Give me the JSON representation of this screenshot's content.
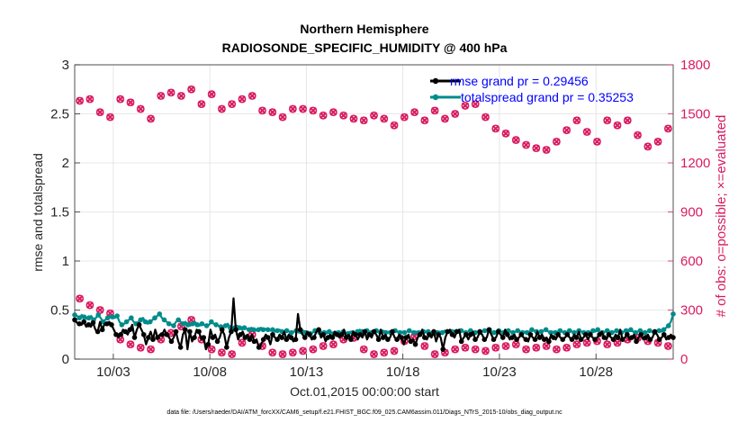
{
  "chart_data": {
    "type": "line",
    "title": "Northern Hemisphere",
    "subtitle": "RADIOSONDE_SPECIFIC_HUMIDITY @ 400 hPa",
    "xlabel": "Oct.01,2015 00:00:00 start",
    "ylabel": "rmse and totalspread",
    "y2label": "# of obs: o=possible; ×=evaluated",
    "footnote": "data file: /Users/raeder/DAI/ATM_forcXX/CAM6_setup/f.e21.FHIST_BGC.f09_025.CAM6assim.011/Diags_NTrS_2015-10/obs_diag_output.nc",
    "x_range": [
      1.0,
      32.0
    ],
    "ylim": [
      0,
      3
    ],
    "y2lim": [
      0,
      1800
    ],
    "x_ticks": [
      3,
      8,
      13,
      18,
      23,
      28
    ],
    "x_tick_labels": [
      "10/03",
      "10/08",
      "10/13",
      "10/18",
      "10/23",
      "10/28"
    ],
    "y_ticks": [
      "0",
      "0.5",
      "1",
      "1.5",
      "2",
      "2.5",
      "3"
    ],
    "y2_ticks": [
      "0",
      "300",
      "600",
      "900",
      "1200",
      "1500",
      "1800"
    ],
    "grid": true,
    "legend_position": "top-right",
    "series": [
      {
        "name": "rmse",
        "legend": "rmse grand pr = 0.29456",
        "color": "#000000",
        "axis": "left",
        "values": [
          0.4,
          0.37,
          0.36,
          0.35,
          0.38,
          0.33,
          0.35,
          0.33,
          0.37,
          0.3,
          0.28,
          0.38,
          0.3,
          0.36,
          0.36,
          0.38,
          0.35,
          0.3,
          0.25,
          0.22,
          0.25,
          0.3,
          0.28,
          0.25,
          0.3,
          0.35,
          0.22,
          0.3,
          0.35,
          0.3,
          0.25,
          0.15,
          0.22,
          0.28,
          0.2,
          0.3,
          0.22,
          0.25,
          0.25,
          0.3,
          0.25,
          0.22,
          0.18,
          0.22,
          0.28,
          0.18,
          0.12,
          0.25,
          0.3,
          0.1,
          0.28,
          0.18,
          0.22,
          0.3,
          0.28,
          0.2,
          0.22,
          0.1,
          0.15,
          0.3,
          0.22,
          0.25,
          0.18,
          0.22,
          0.3,
          0.25,
          0.12,
          0.22,
          0.28,
          0.62,
          0.3,
          0.2,
          0.25,
          0.28,
          0.22,
          0.25,
          0.2,
          0.25,
          0.18,
          0.2,
          0.12,
          0.15,
          0.2,
          0.25,
          0.22,
          0.15,
          0.25,
          0.22,
          0.2,
          0.25,
          0.22,
          0.28,
          0.2,
          0.25,
          0.22,
          0.18,
          0.2,
          0.46,
          0.3,
          0.25,
          0.22,
          0.28,
          0.25,
          0.2,
          0.22,
          0.28,
          0.3,
          0.22,
          0.25,
          0.18,
          0.22,
          0.25,
          0.22,
          0.28,
          0.25,
          0.22,
          0.25,
          0.3,
          0.22,
          0.25,
          0.2,
          0.28,
          0.25,
          0.2,
          0.25,
          0.22,
          0.28,
          0.2,
          0.25,
          0.22,
          0.28,
          0.25,
          0.2,
          0.3,
          0.22,
          0.25,
          0.2,
          0.22,
          0.28,
          0.22,
          0.2,
          0.25,
          0.22,
          0.15,
          0.22,
          0.25,
          0.18,
          0.2,
          0.15,
          0.22,
          0.25,
          0.3,
          0.22,
          0.2,
          0.25,
          0.22,
          0.28,
          0.18,
          0.25,
          0.22,
          0.1,
          0.22,
          0.28,
          0.3,
          0.25,
          0.22,
          0.28,
          0.3,
          0.18,
          0.22,
          0.25,
          0.2,
          0.25,
          0.28,
          0.2,
          0.22,
          0.28,
          0.25,
          0.2,
          0.22,
          0.3,
          0.25,
          0.2,
          0.22,
          0.28,
          0.25,
          0.22,
          0.3,
          0.25,
          0.2,
          0.22,
          0.25,
          0.2,
          0.22,
          0.25,
          0.22,
          0.2,
          0.18,
          0.25,
          0.22,
          0.2,
          0.28,
          0.22,
          0.25,
          0.2,
          0.22,
          0.18,
          0.25,
          0.22,
          0.2,
          0.25,
          0.22,
          0.2,
          0.22,
          0.25,
          0.22,
          0.2,
          0.25,
          0.22,
          0.28,
          0.2,
          0.22,
          0.25,
          0.2,
          0.25,
          0.22,
          0.2,
          0.22,
          0.25,
          0.28,
          0.22,
          0.2,
          0.25,
          0.22,
          0.2,
          0.25,
          0.22,
          0.3,
          0.2,
          0.22,
          0.25,
          0.2,
          0.22,
          0.25,
          0.18,
          0.22,
          0.25,
          0.2,
          0.22,
          0.25,
          0.2,
          0.22,
          0.28,
          0.25,
          0.2,
          0.22,
          0.25,
          0.2,
          0.22,
          0.25,
          0.22
        ]
      },
      {
        "name": "totalspread",
        "legend": "totalspread grand pr = 0.35253",
        "color": "#008b8b",
        "axis": "left",
        "values": [
          0.45,
          0.44,
          0.42,
          0.45,
          0.43,
          0.41,
          0.42,
          0.44,
          0.4,
          0.42,
          0.45,
          0.42,
          0.38,
          0.4,
          0.42,
          0.44,
          0.43,
          0.42,
          0.44,
          0.38,
          0.35,
          0.36,
          0.38,
          0.4,
          0.42,
          0.38,
          0.36,
          0.38,
          0.4,
          0.42,
          0.38,
          0.36,
          0.38,
          0.4,
          0.42,
          0.44,
          0.46,
          0.42,
          0.4,
          0.38,
          0.36,
          0.35,
          0.34,
          0.38,
          0.4,
          0.38,
          0.36,
          0.38,
          0.35,
          0.34,
          0.36,
          0.38,
          0.35,
          0.34,
          0.36,
          0.35,
          0.34,
          0.35,
          0.38,
          0.36,
          0.35,
          0.34,
          0.33,
          0.32,
          0.34,
          0.36,
          0.32,
          0.3,
          0.32,
          0.34,
          0.32,
          0.3,
          0.32,
          0.31,
          0.3,
          0.32,
          0.3,
          0.29,
          0.3,
          0.32,
          0.3,
          0.31,
          0.3,
          0.29,
          0.3,
          0.28,
          0.29,
          0.3,
          0.28,
          0.27,
          0.29,
          0.28,
          0.27,
          0.28,
          0.29,
          0.27,
          0.28,
          0.29,
          0.27,
          0.28,
          0.26,
          0.27,
          0.29,
          0.28,
          0.27,
          0.28,
          0.27,
          0.26,
          0.28,
          0.27,
          0.26,
          0.28,
          0.27,
          0.26,
          0.28,
          0.27,
          0.26,
          0.28,
          0.27,
          0.26,
          0.28,
          0.3,
          0.28,
          0.27,
          0.29,
          0.28,
          0.27,
          0.28,
          0.29,
          0.27,
          0.28,
          0.29,
          0.27,
          0.28,
          0.27,
          0.28,
          0.29,
          0.28,
          0.27,
          0.28,
          0.27,
          0.28,
          0.29,
          0.28,
          0.27,
          0.28,
          0.27,
          0.26,
          0.28,
          0.27,
          0.28,
          0.27,
          0.26,
          0.28,
          0.27,
          0.28,
          0.27,
          0.29,
          0.28,
          0.27,
          0.28,
          0.29,
          0.28,
          0.27,
          0.29,
          0.28,
          0.27,
          0.28,
          0.29,
          0.28,
          0.27,
          0.28,
          0.27,
          0.28,
          0.29,
          0.28,
          0.3,
          0.28,
          0.27,
          0.28,
          0.29,
          0.28,
          0.27,
          0.28,
          0.29,
          0.28,
          0.27,
          0.28,
          0.29,
          0.28,
          0.27,
          0.28,
          0.27,
          0.28,
          0.3,
          0.29,
          0.28,
          0.27,
          0.28,
          0.29,
          0.3,
          0.28,
          0.27,
          0.28,
          0.27,
          0.28,
          0.29,
          0.28,
          0.27,
          0.28,
          0.29,
          0.28,
          0.27,
          0.28,
          0.29,
          0.28,
          0.27,
          0.28,
          0.27,
          0.28,
          0.29,
          0.28,
          0.3,
          0.28,
          0.27,
          0.28,
          0.29,
          0.28,
          0.27,
          0.28,
          0.29,
          0.28,
          0.27,
          0.28,
          0.29,
          0.28,
          0.3,
          0.28,
          0.27,
          0.28,
          0.29,
          0.28,
          0.27,
          0.28,
          0.29,
          0.28,
          0.27,
          0.28,
          0.29,
          0.28,
          0.3,
          0.32,
          0.34,
          0.38,
          0.46
        ]
      },
      {
        "name": "obs_possible_evaluated_6h",
        "legend": "",
        "color": "#d81b60",
        "axis": "right",
        "marker": "o/x",
        "values": [
          1580,
          1590,
          1510,
          1480,
          1590,
          1570,
          1530,
          1470,
          1610,
          1630,
          1610,
          1650,
          1560,
          1620,
          1530,
          1560,
          1590,
          1610,
          1520,
          1510,
          1480,
          1530,
          1530,
          1520,
          1490,
          1510,
          1490,
          1470,
          1460,
          1490,
          1470,
          1430,
          1480,
          1510,
          1460,
          1520,
          1470,
          1500,
          1550,
          1560,
          1480,
          1410,
          1380,
          1340,
          1310,
          1290,
          1280,
          1330,
          1400,
          1460,
          1390,
          1330,
          1460,
          1430,
          1460,
          1370,
          1300,
          1330,
          1410
        ]
      },
      {
        "name": "obs_possible_evaluated_12h",
        "legend": "",
        "color": "#d81b60",
        "axis": "right",
        "marker": "o/x",
        "values": [
          370,
          330,
          300,
          280,
          120,
          90,
          70,
          60,
          120,
          160,
          200,
          240,
          120,
          60,
          40,
          30,
          100,
          150,
          80,
          40,
          30,
          40,
          50,
          60,
          80,
          90,
          120,
          130,
          60,
          30,
          40,
          50,
          110,
          140,
          80,
          30,
          40,
          60,
          70,
          60,
          50,
          70,
          80,
          90,
          60,
          70,
          80,
          60,
          70,
          90,
          100,
          110,
          90,
          100,
          120,
          130,
          110,
          100,
          80
        ]
      }
    ]
  }
}
